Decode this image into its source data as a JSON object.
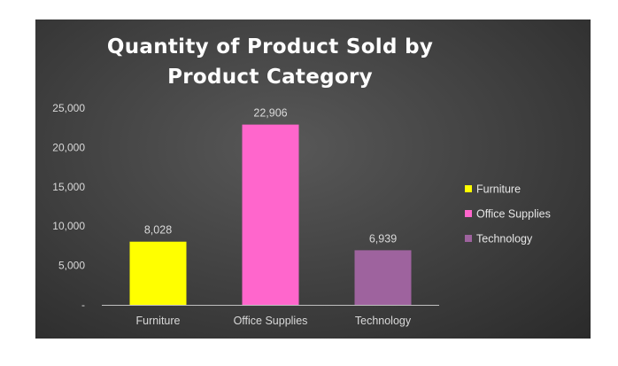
{
  "chart_data": {
    "type": "bar",
    "title": "Quantity of Product Sold by Product Category",
    "categories": [
      "Furniture",
      "Office Supplies",
      "Technology"
    ],
    "values": [
      8028,
      22906,
      6939
    ],
    "data_labels": [
      "8,028",
      "22,906",
      "6,939"
    ],
    "colors": [
      "#ffff00",
      "#ff66cc",
      "#9e639e"
    ],
    "ylim": [
      0,
      25000
    ],
    "yticks": [
      0,
      5000,
      10000,
      15000,
      20000,
      25000
    ],
    "ytick_labels": [
      "-",
      "5,000",
      "10,000",
      "15,000",
      "20,000",
      "25,000"
    ],
    "xlabel": "",
    "ylabel": "",
    "grid": false,
    "legend": {
      "position": "right",
      "entries": [
        "Furniture",
        "Office Supplies",
        "Technology"
      ]
    },
    "background": "#3f3f3f"
  }
}
